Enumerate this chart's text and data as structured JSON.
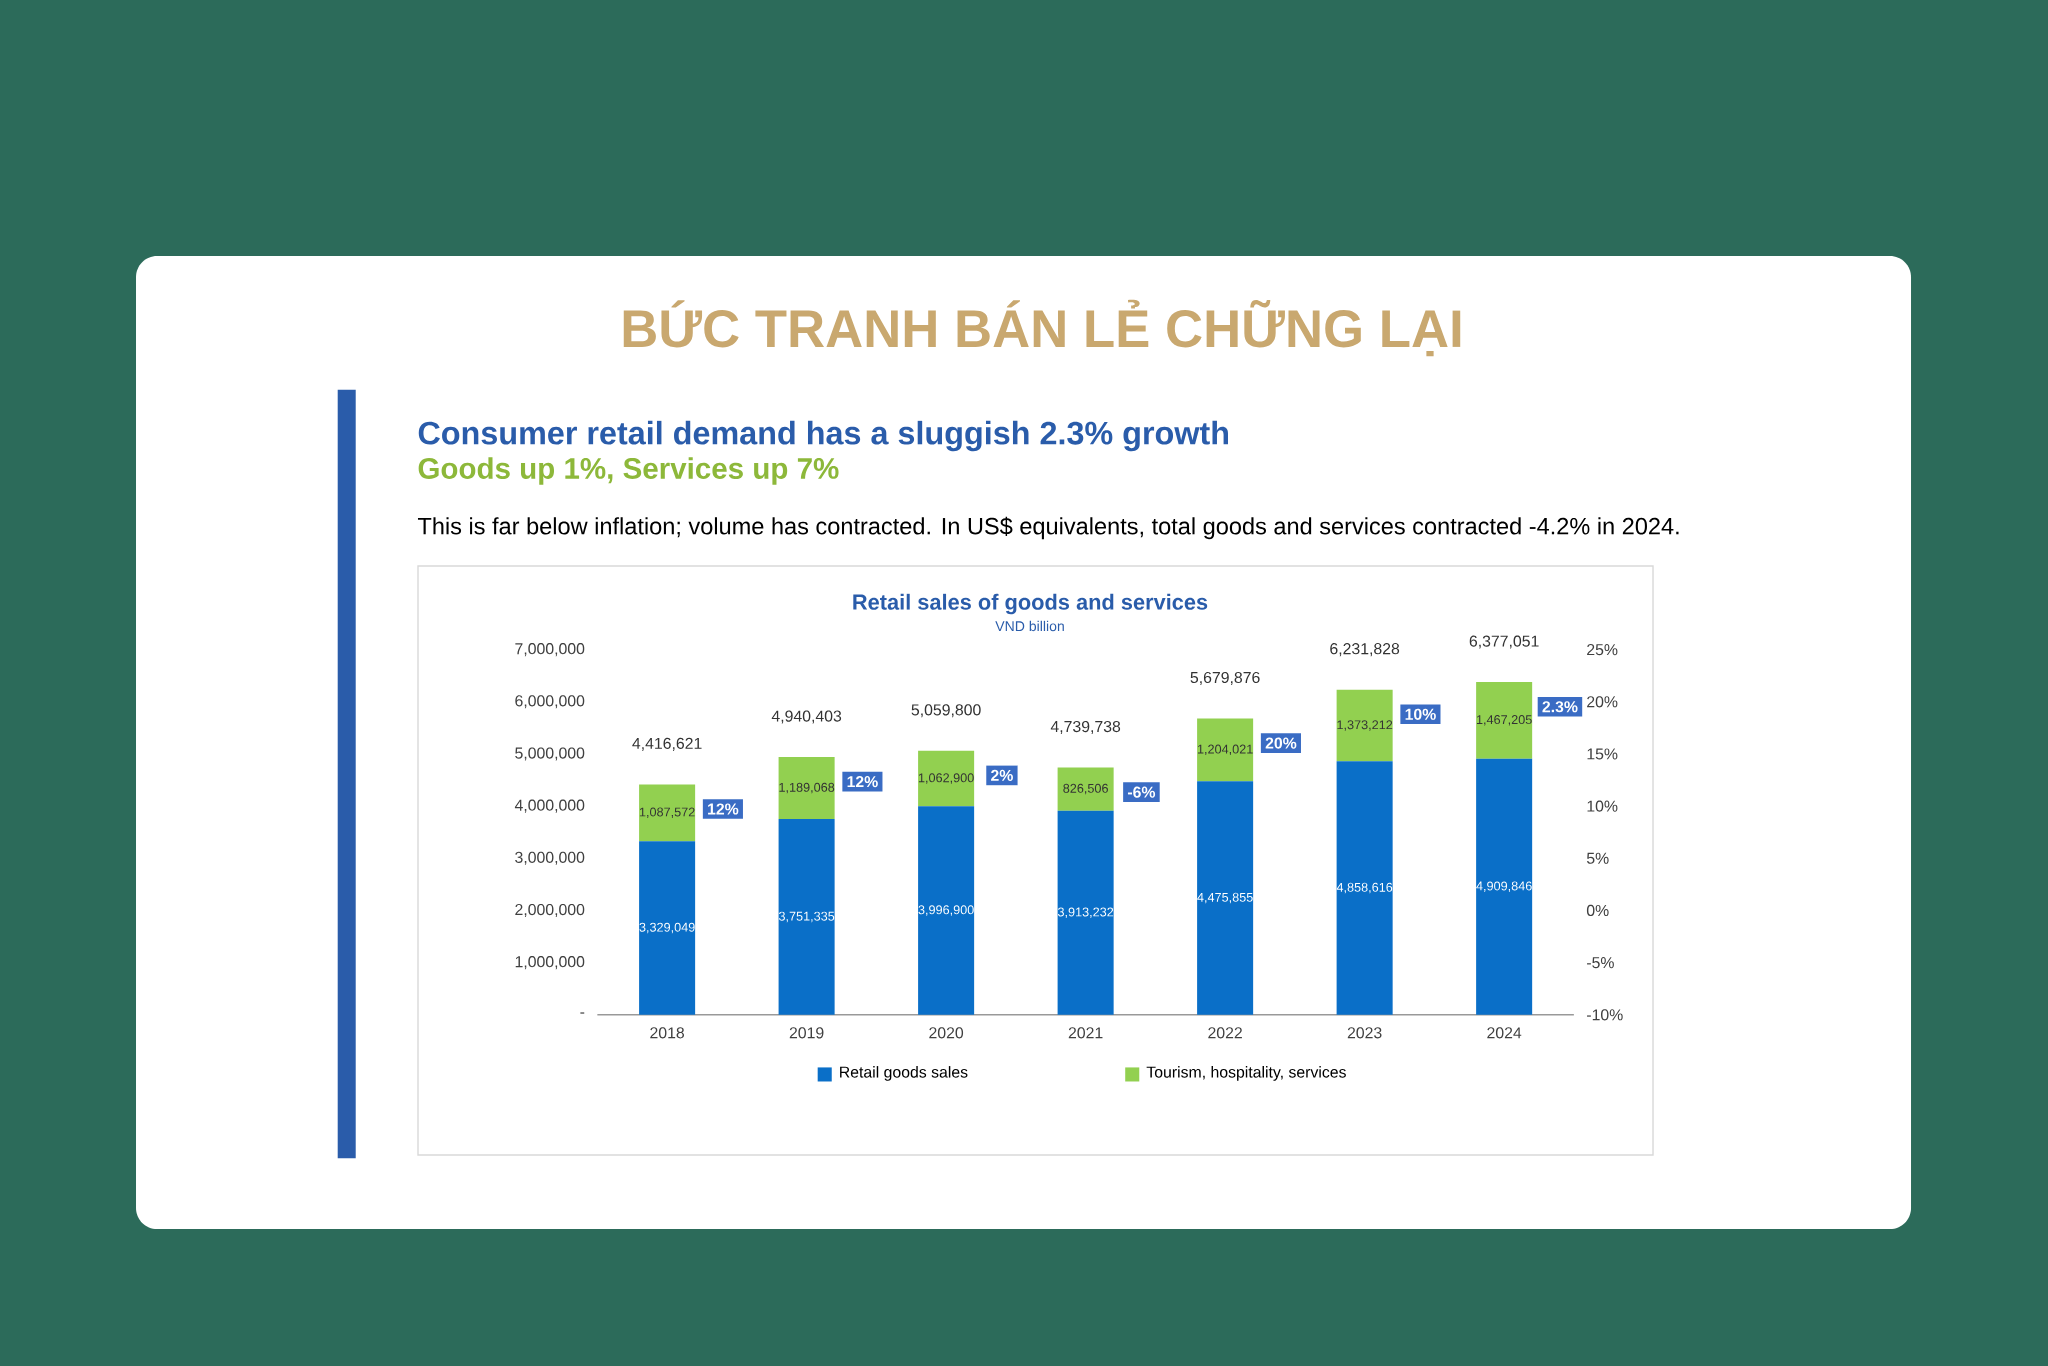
{
  "chart_data": {
    "type": "bar",
    "stacked": true,
    "title": "BỨC TRANH BÁN LẺ CHỮNG LẠI",
    "subtitle": "Consumer retail demand has a sluggish 2.3% growth",
    "categories": [
      "2018",
      "2019",
      "2020",
      "2021",
      "2022",
      "2023",
      "2024"
    ],
    "series": [
      {
        "name": "Retail goods sales",
        "color": "#0a6fc8",
        "values": [
          3329049,
          3751335,
          3996900,
          3913232,
          4475855,
          4858616,
          4909846
        ],
        "value_labels": [
          "3,329,049",
          "3,751,335",
          "3,996,900",
          "3,913,232",
          "4,475,855",
          "4,858,616",
          "4,909,846"
        ]
      },
      {
        "name": "Tourism, hospitality, services",
        "color": "#92d050",
        "values": [
          1087572,
          1189068,
          1062900,
          826506,
          1204021,
          1373212,
          1467205
        ],
        "value_labels": [
          "1,087,572",
          "1,189,068",
          "1,062,900",
          "826,506",
          "1,204,021",
          "1,373,212",
          "1,467,205"
        ]
      }
    ],
    "totals": [
      "4,416,621",
      "4,940,403",
      "5,059,800",
      "4,739,738",
      "5,679,876",
      "6,231,828",
      "6,377,051"
    ],
    "ylim": [
      0,
      7000000
    ],
    "yticks": [
      {
        "value": 0,
        "label": "-"
      },
      {
        "value": 1000000,
        "label": "1,000,000"
      },
      {
        "value": 2000000,
        "label": "2,000,000"
      },
      {
        "value": 3000000,
        "label": "3,000,000"
      },
      {
        "value": 4000000,
        "label": "4,000,000"
      },
      {
        "value": 5000000,
        "label": "5,000,000"
      },
      {
        "value": 6000000,
        "label": "6,000,000"
      },
      {
        "value": 7000000,
        "label": "7,000,000"
      }
    ],
    "y2lim": [
      -10,
      25
    ],
    "y2ticks": [
      {
        "value": -10,
        "label": "-10%"
      },
      {
        "value": -5,
        "label": "-5%"
      },
      {
        "value": 0,
        "label": "0%"
      },
      {
        "value": 5,
        "label": "5%"
      },
      {
        "value": 10,
        "label": "10%"
      },
      {
        "value": 15,
        "label": "15%"
      },
      {
        "value": 20,
        "label": "20%"
      },
      {
        "value": 25,
        "label": "25%"
      }
    ],
    "legend": "bottom",
    "annotations": [
      "Goods up 1%, Services up 7%",
      "This is far below inflation; volume has contracted. In US$ equivalents, total goods and services contracted -4.2% in 2024.",
      "Retail sales of goods and services",
      "VND billion",
      "12%",
      "12%",
      "2%",
      "-6%",
      "20%",
      "10%",
      "2.3%"
    ]
  }
}
